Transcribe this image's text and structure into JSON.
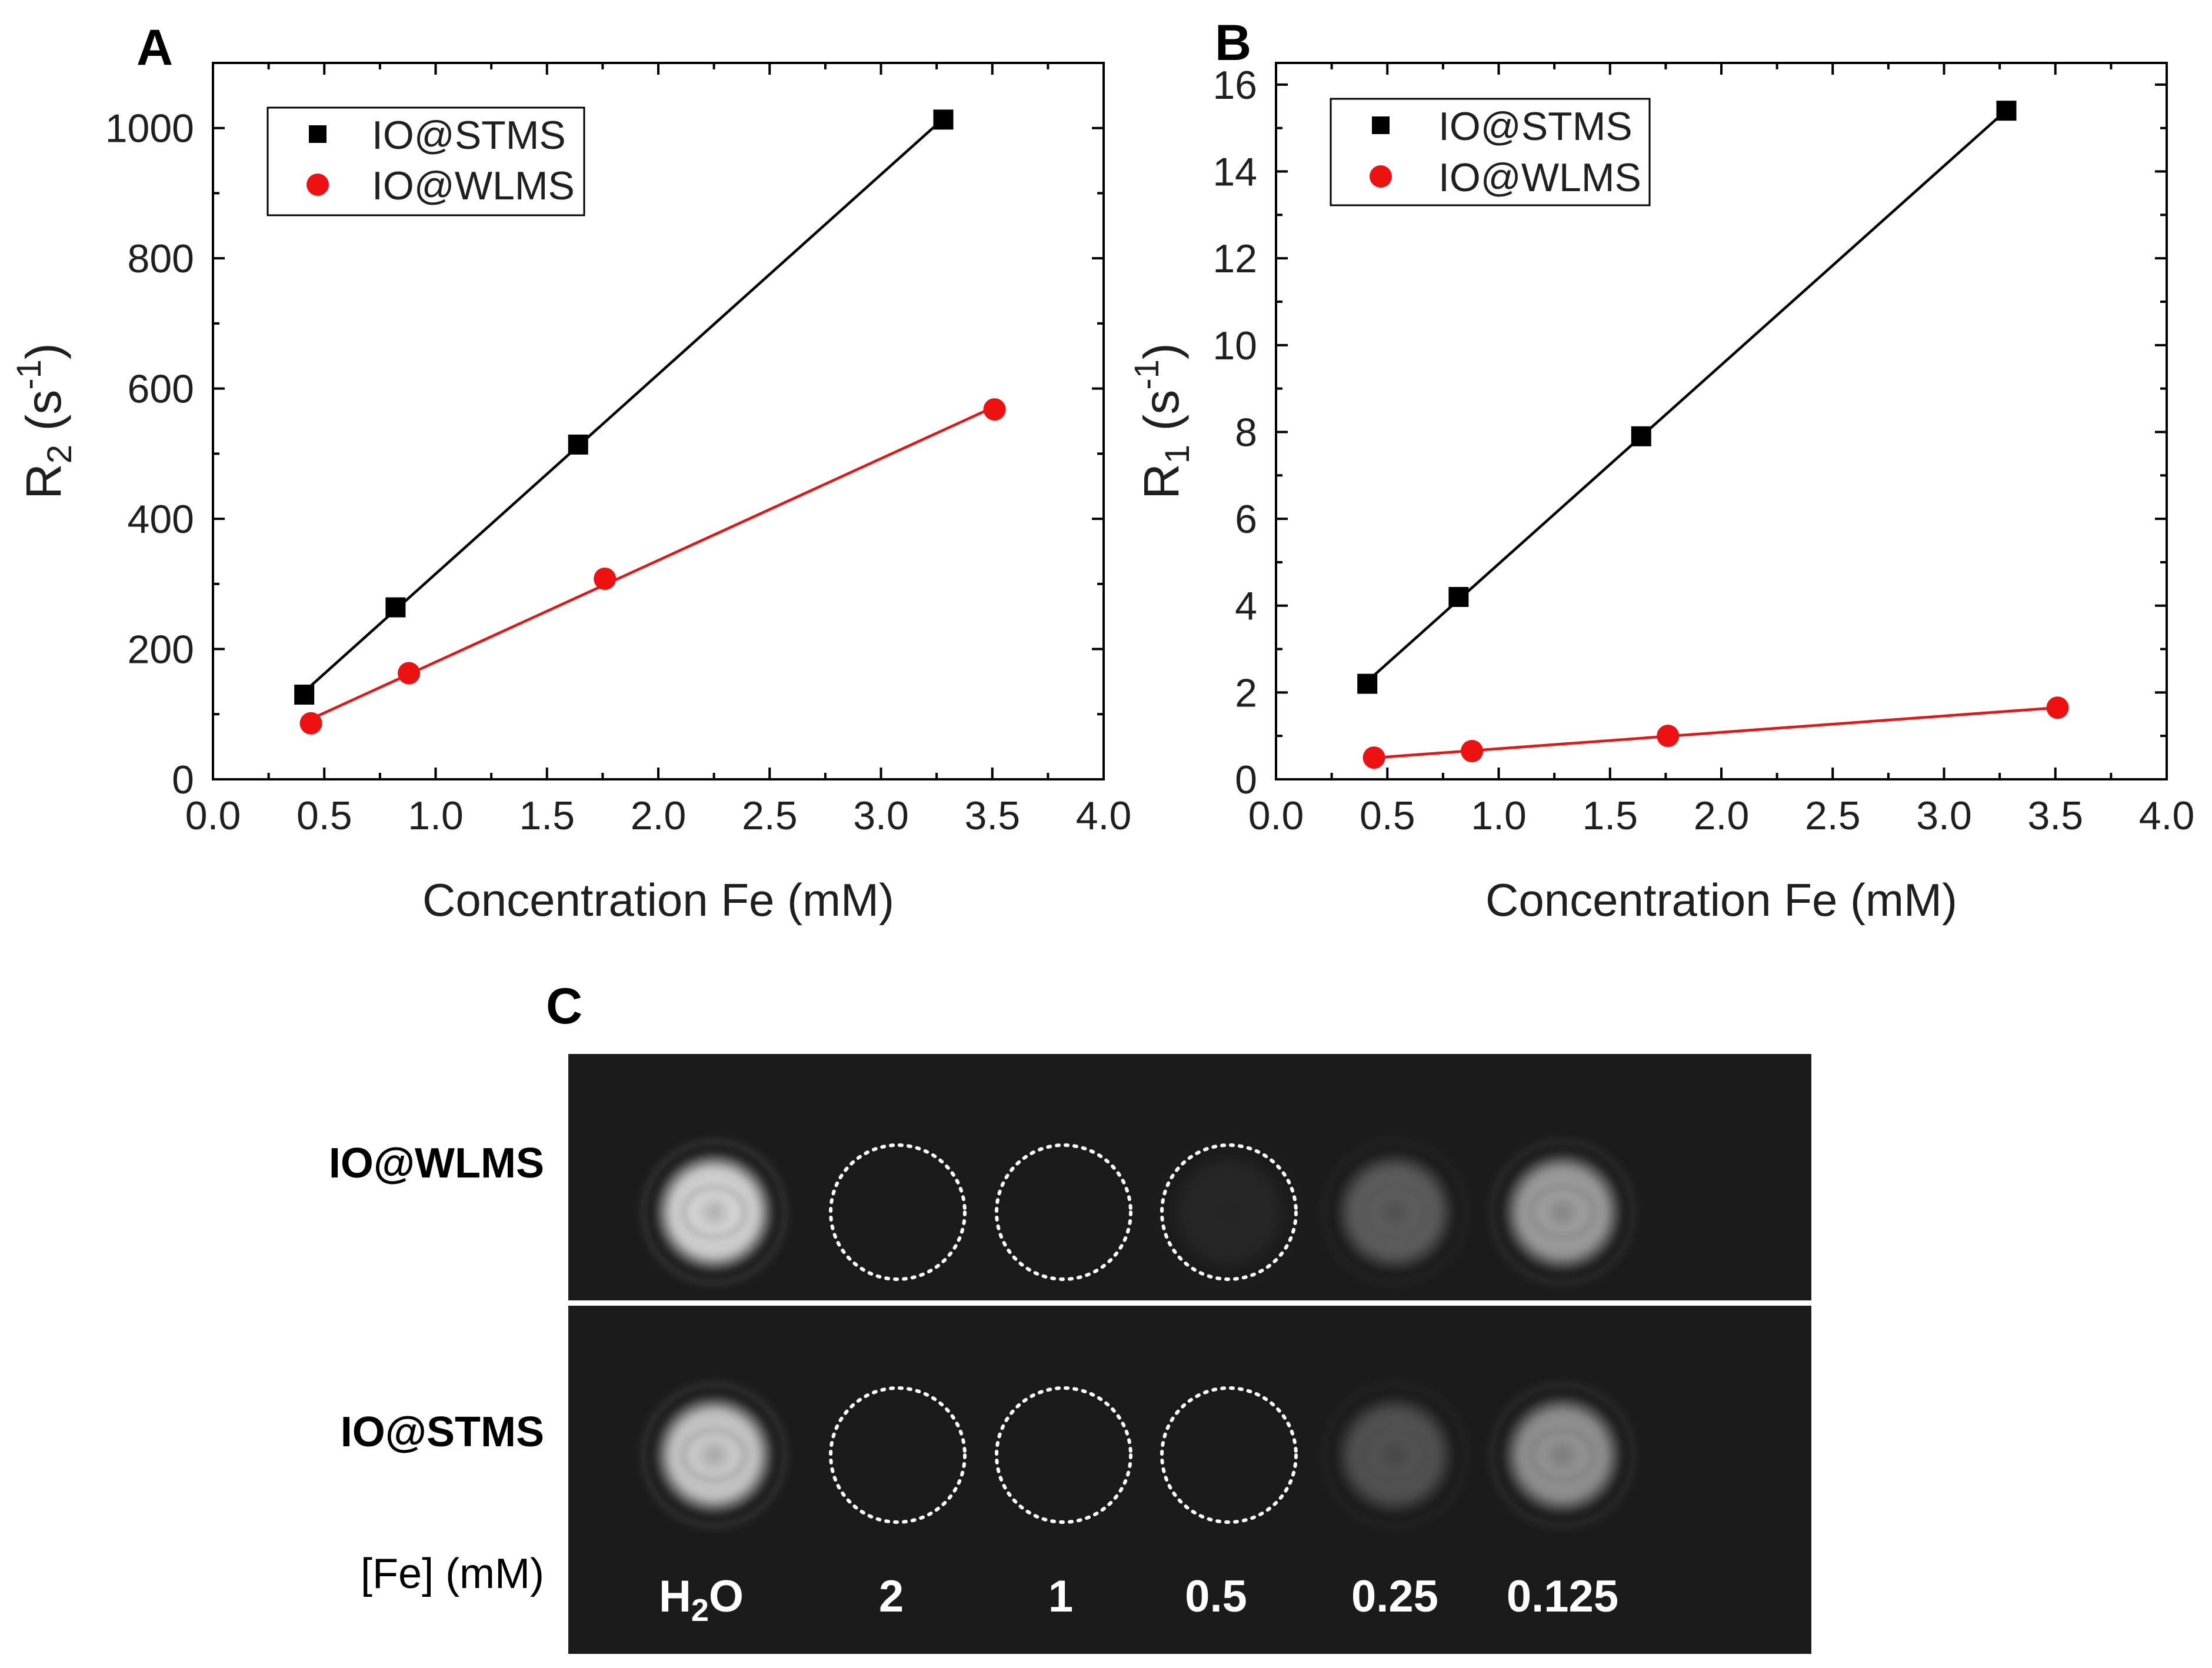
{
  "figure": {
    "panel_labels": {
      "a": "A",
      "b": "B",
      "c": "C"
    }
  },
  "colors": {
    "stms": "#000000",
    "wlms": "#ee1111",
    "mri_background": "#1b1b1b"
  },
  "chart_data": [
    {
      "type": "scatter",
      "panel": "A",
      "xlabel": "Concentration Fe (mM)",
      "ylabel_main": "R",
      "ylabel_sub": "2",
      "ylabel_unit_open": " (s",
      "ylabel_unit_exp": "-1",
      "ylabel_unit_close": ")",
      "xlim": [
        0.0,
        4.0
      ],
      "ylim": [
        0,
        1100
      ],
      "xticks": [
        0.0,
        0.5,
        1.0,
        1.5,
        2.0,
        2.5,
        3.0,
        3.5,
        4.0
      ],
      "xtick_labels": [
        "0.0",
        "0.5",
        "1.0",
        "1.5",
        "2.0",
        "2.5",
        "3.0",
        "3.5",
        "4.0"
      ],
      "yticks": [
        0,
        200,
        400,
        600,
        800,
        1000
      ],
      "ytick_labels": [
        "0",
        "200",
        "400",
        "600",
        "800",
        "1000"
      ],
      "legend_position": "top-left",
      "series": [
        {
          "name": "IO@STMS",
          "marker": "square",
          "color": "#000000",
          "x": [
            0.41,
            0.82,
            1.64,
            3.28
          ],
          "y": [
            130,
            264,
            514,
            1013
          ]
        },
        {
          "name": "IO@WLMS",
          "marker": "circle",
          "color": "#ee1111",
          "x": [
            0.44,
            0.88,
            1.76,
            3.51
          ],
          "y": [
            86,
            163,
            308,
            568
          ]
        }
      ]
    },
    {
      "type": "scatter",
      "panel": "B",
      "xlabel": "Concentration Fe (mM)",
      "ylabel_main": "R",
      "ylabel_sub": "1",
      "ylabel_unit_open": " (s",
      "ylabel_unit_exp": "-1",
      "ylabel_unit_close": ")",
      "xlim": [
        0.0,
        4.0
      ],
      "ylim": [
        0,
        16.5
      ],
      "xticks": [
        0.0,
        0.5,
        1.0,
        1.5,
        2.0,
        2.5,
        3.0,
        3.5,
        4.0
      ],
      "xtick_labels": [
        "0.0",
        "0.5",
        "1.0",
        "1.5",
        "2.0",
        "2.5",
        "3.0",
        "3.5",
        "4.0"
      ],
      "yticks": [
        0,
        2,
        4,
        6,
        8,
        10,
        12,
        14,
        16
      ],
      "ytick_labels": [
        "0",
        "2",
        "4",
        "6",
        "8",
        "10",
        "12",
        "14",
        "16"
      ],
      "legend_position": "top-left",
      "series": [
        {
          "name": "IO@STMS",
          "marker": "square",
          "color": "#000000",
          "x": [
            0.41,
            0.82,
            1.64,
            3.28
          ],
          "y": [
            2.2,
            4.2,
            7.9,
            15.4
          ]
        },
        {
          "name": "IO@WLMS",
          "marker": "circle",
          "color": "#ee1111",
          "x": [
            0.44,
            0.88,
            1.76,
            3.51
          ],
          "y": [
            0.5,
            0.65,
            1.0,
            1.65
          ]
        }
      ]
    }
  ],
  "mri": {
    "rows": [
      {
        "label": "IO@WLMS",
        "brightness": [
          0.85,
          0.0,
          0.0,
          0.05,
          0.3,
          0.6
        ]
      },
      {
        "label": "IO@STMS",
        "brightness": [
          0.8,
          0.0,
          0.0,
          0.0,
          0.25,
          0.55
        ]
      }
    ],
    "dotted_circle_columns": [
      1,
      2,
      3
    ],
    "concentration_header": "[Fe] (mM)",
    "water_label_main": "H",
    "water_label_sub": "2",
    "water_label_end": "O",
    "concentrations": [
      "2",
      "1",
      "0.5",
      "0.25",
      "0.125"
    ]
  }
}
